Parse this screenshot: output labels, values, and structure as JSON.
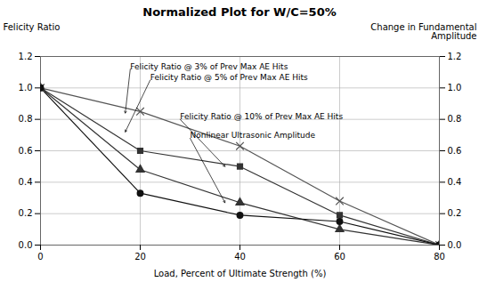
{
  "chart_data": {
    "type": "line",
    "title": "Normalized Plot for W/C=50%",
    "xlabel": "Load, Percent of Ultimate Strength (%)",
    "ylabel": "Felicity Ratio",
    "y2label": "Change in Fundamental\nAmplitude",
    "xlim": [
      0,
      80
    ],
    "xticks": [
      0,
      20,
      40,
      60,
      80
    ],
    "ylim": [
      0,
      1.2
    ],
    "yticks": [
      {
        "value": 0,
        "label": "0.0"
      },
      0.2,
      0.4,
      0.6,
      0.8,
      {
        "value": 1.0,
        "label": "1.0"
      },
      1.2
    ],
    "y2lim": [
      0,
      1.2
    ],
    "y2ticks": [
      {
        "value": 0,
        "label": "0.0"
      },
      0.2,
      0.4,
      0.6,
      0.8,
      {
        "value": 1.0,
        "label": "1.0"
      },
      1.2
    ],
    "grid": true,
    "x": [
      0,
      20,
      40,
      60,
      80
    ],
    "series": [
      {
        "name": "Felicity Ratio @ 3% of Prev Max AE Hits",
        "color": "#555555",
        "marker": "x",
        "values": [
          1.0,
          0.85,
          0.63,
          0.28,
          0.0
        ]
      },
      {
        "name": "Felicity Ratio @ 5% of Prev Max AE Hits",
        "color": "#333333",
        "marker": "square",
        "values": [
          1.0,
          0.6,
          0.5,
          0.19,
          0.0
        ]
      },
      {
        "name": "Felicity Ratio @ 10% of Prev Max AE Hits",
        "color": "#333333",
        "marker": "triangle",
        "values": [
          1.0,
          0.48,
          0.27,
          0.1,
          0.0
        ]
      },
      {
        "name": "Nonlinear Ultrasonic Amplitude",
        "color": "#111111",
        "marker": "circle",
        "values": [
          1.0,
          0.33,
          0.19,
          0.15,
          0.0
        ]
      }
    ],
    "annotations": [
      {
        "text": "Felicity Ratio @ 3% of Prev Max AE Hits",
        "xy": [
          17,
          0.84
        ],
        "xytext": [
          18,
          1.12
        ]
      },
      {
        "text": "Felicity Ratio @ 5% of Prev Max AE Hits",
        "xy": [
          17,
          0.72
        ],
        "xytext": [
          22,
          1.05
        ]
      },
      {
        "text": "Felicity Ratio @ 10% of Prev Max AE Hits",
        "xy": [
          37,
          0.5
        ],
        "xytext": [
          28,
          0.8
        ]
      },
      {
        "text": "Nonlinear Ultrasonic Amplitude",
        "xy": [
          37,
          0.27
        ],
        "xytext": [
          30,
          0.68
        ]
      }
    ]
  }
}
